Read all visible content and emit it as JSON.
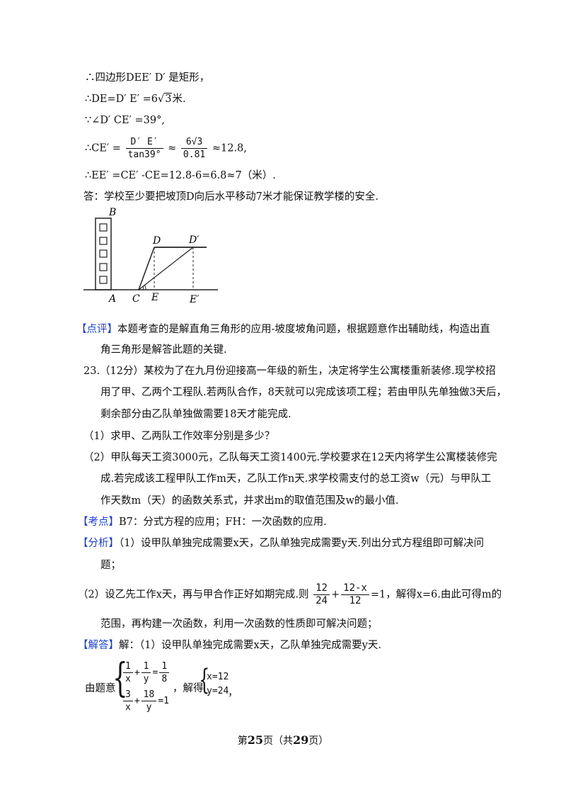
{
  "lines": {
    "l1": "∴四边形DEE′ D′ 是矩形，",
    "l2a": "∴DE=D′ E′ =6",
    "l2b": "3",
    "l2c": "米.",
    "l3": "∵∠D′ CE′ =39°,",
    "l4a": "∴CE′ =",
    "l4_num": "D′ E′",
    "l4_den": "tan39°",
    "l4b": "≈",
    "l4_num2": "6√3",
    "l4_den2": "0.81",
    "l4c": "≈12.8,",
    "l5": "∴EE′ =CE′ ‑CE=12.8‑6=6.8≈7（米）.",
    "l6": "答：学校至少要把坡顶D向后水平移动7米才能保证教学楼的安全."
  },
  "diagram": {
    "labels": [
      "B",
      "D",
      "D′",
      "C",
      "E",
      "A",
      "E′"
    ]
  },
  "comment": {
    "tag": "【点评】",
    "text1": "本题考查的是解直角三角形的应用‑坡度坡角问题，根据题意作出辅助线，构造出直",
    "text2": "角三角形是解答此题的关键."
  },
  "problem": {
    "p1": "23.（12分）某校为了在九月份迎接高一年级的新生，决定将学生公寓楼重新装修.现学校招",
    "p2": "用了甲、乙两个工程队.若两队合作，8天就可以完成该项工程；若由甲队先单独做3天后，",
    "p3": "剩余部分由乙队单独做需要18天才能完成.",
    "q1": "（1）求甲、乙两队工作效率分别是多少？",
    "q2a": "（2）甲队每天工资3000元，乙队每天工资1400元.学校要求在12天内将学生公寓楼装修完",
    "q2b": "成.若完成该工程甲队工作m天，乙队工作n天.求学校需支付的总工资w（元）与甲队工",
    "q2c": "作天数m（天）的函数关系式，并求出m的取值范围及w的最小值."
  },
  "kaodian": {
    "tag": "【考点】",
    "text": "B7：分式方程的应用；FH：一次函数的应用."
  },
  "fenxi": {
    "tag": "【分析】",
    "a1": "（1）设甲队单独完成需要x天，乙队单独完成需要y天.列出分式方程组即可解决问",
    "a2": "题；",
    "b1": "（2）设乙先工作x天，再与甲合作正好如期完成.则",
    "b_num1": "12",
    "b_den1": "24",
    "b_plus": "+",
    "b_num2": "12‑x",
    "b_den2": "12",
    "b2": "=1，解得x=6.由此可得m的",
    "b3": "范围，再构建一次函数，利用一次函数的性质即可解决问题；"
  },
  "jieda": {
    "tag": "【解答】",
    "text": "解：（1）设甲队单独完成需要x天，乙队单独完成需要y天.",
    "yiti": "由题意",
    "eq1": [
      "1",
      "x",
      "+",
      "1",
      "y",
      "=",
      "1",
      "8"
    ],
    "eq2": [
      "3",
      "x",
      "+",
      "18",
      "y",
      "=1"
    ],
    "jiede": "，解得",
    "sol1": "x=12",
    "sol2": "y=24",
    "end": "，"
  },
  "footer": {
    "pre": "第",
    "page": "25",
    "mid": "页（共",
    "total": "29",
    "post": "页）"
  }
}
